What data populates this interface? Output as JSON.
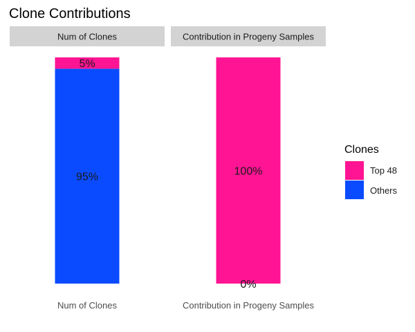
{
  "chart_data": {
    "type": "bar",
    "stacked": true,
    "title": "Clone Contributions",
    "facets": [
      "Num of Clones",
      "Contribution in Progeny Samples"
    ],
    "categories": [
      "Num of Clones",
      "Contribution in Progeny Samples"
    ],
    "series": [
      {
        "name": "Top 48",
        "color": "#ff1493",
        "values": [
          5,
          100
        ],
        "labels": [
          "5%",
          "100%"
        ]
      },
      {
        "name": "Others",
        "color": "#0a4bff",
        "values": [
          95,
          0
        ],
        "labels": [
          "95%",
          "0%"
        ]
      }
    ],
    "ylim": [
      0,
      100
    ],
    "grid": false,
    "legend": {
      "title": "Clones",
      "position": "right"
    }
  }
}
